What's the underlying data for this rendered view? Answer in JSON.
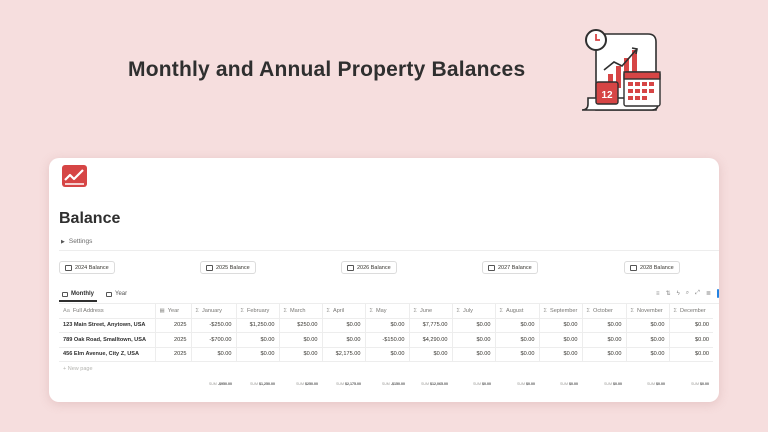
{
  "hero": {
    "title": "Monthly and Annual Property Balances"
  },
  "page": {
    "title": "Balance",
    "settings_label": "Settings",
    "colors": {
      "accent": "#d64545",
      "background": "#f6dede"
    }
  },
  "balance_buttons": [
    "2024 Balance",
    "2025 Balance",
    "2026 Balance",
    "2027 Balance",
    "2028 Balance"
  ],
  "views": {
    "tabs": [
      "Monthly",
      "Year"
    ],
    "active": "Monthly"
  },
  "table": {
    "columns": [
      "Full Address",
      "Year",
      "January",
      "February",
      "March",
      "April",
      "May",
      "June",
      "July",
      "August",
      "September",
      "October",
      "November",
      "December"
    ],
    "rows": [
      [
        "123 Main Street, Anytown, USA",
        "2025",
        "-$250.00",
        "$1,250.00",
        "$250.00",
        "$0.00",
        "$0.00",
        "$7,775.00",
        "$0.00",
        "$0.00",
        "$0.00",
        "$0.00",
        "$0.00",
        "$0.00"
      ],
      [
        "789 Oak Road, Smalltown, USA",
        "2025",
        "-$700.00",
        "$0.00",
        "$0.00",
        "$0.00",
        "-$150.00",
        "$4,290.00",
        "$0.00",
        "$0.00",
        "$0.00",
        "$0.00",
        "$0.00",
        "$0.00"
      ],
      [
        "456 Elm Avenue, City Z, USA",
        "2025",
        "$0.00",
        "$0.00",
        "$0.00",
        "$2,175.00",
        "$0.00",
        "$0.00",
        "$0.00",
        "$0.00",
        "$0.00",
        "$0.00",
        "$0.00",
        "$0.00"
      ]
    ],
    "new_page_label": "New page",
    "sum_prefix": "SUM",
    "sums": [
      "",
      "",
      "-$950.00",
      "$1,250.00",
      "$250.00",
      "$2,175.00",
      "-$150.00",
      "$12,065.00",
      "$0.00",
      "$0.00",
      "$0.00",
      "$0.00",
      "$0.00",
      "$0.00"
    ]
  }
}
